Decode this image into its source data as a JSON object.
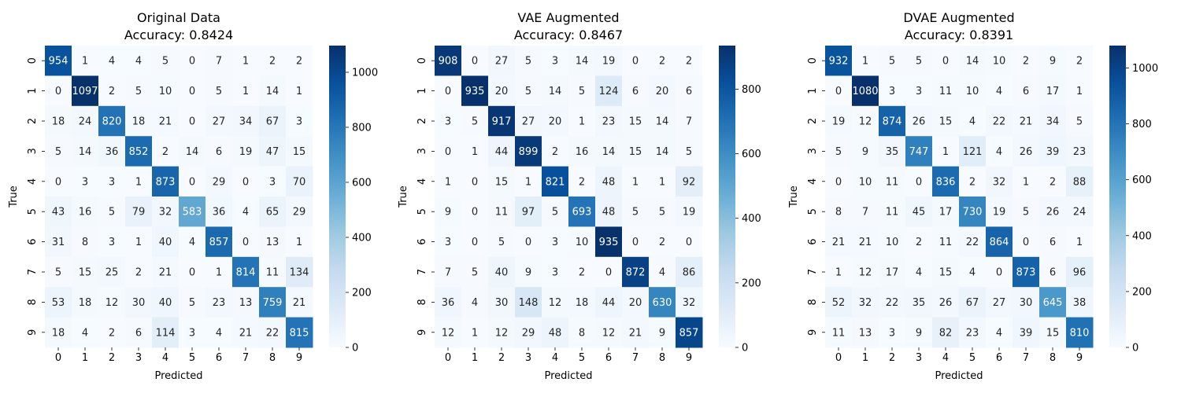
{
  "chart_data": [
    {
      "type": "heatmap",
      "title": "Original Data",
      "subtitle": "Accuracy: 0.8424",
      "xlabel": "Predicted",
      "ylabel": "True",
      "x_ticks": [
        "0",
        "1",
        "2",
        "3",
        "4",
        "5",
        "6",
        "7",
        "8",
        "9"
      ],
      "y_ticks": [
        "0",
        "1",
        "2",
        "3",
        "4",
        "5",
        "6",
        "7",
        "8",
        "9"
      ],
      "colorbar_range": [
        0,
        1097
      ],
      "colorbar_ticks": [
        0,
        200,
        400,
        600,
        800,
        1000
      ],
      "colormap": "Blues",
      "matrix": [
        [
          954,
          1,
          4,
          4,
          5,
          0,
          7,
          1,
          2,
          2
        ],
        [
          0,
          1097,
          2,
          5,
          10,
          0,
          5,
          1,
          14,
          1
        ],
        [
          18,
          24,
          820,
          18,
          21,
          0,
          27,
          34,
          67,
          3
        ],
        [
          5,
          14,
          36,
          852,
          2,
          14,
          6,
          19,
          47,
          15
        ],
        [
          0,
          3,
          3,
          1,
          873,
          0,
          29,
          0,
          3,
          70
        ],
        [
          43,
          16,
          5,
          79,
          32,
          583,
          36,
          4,
          65,
          29
        ],
        [
          31,
          8,
          3,
          1,
          40,
          4,
          857,
          0,
          13,
          1
        ],
        [
          5,
          15,
          25,
          2,
          21,
          0,
          1,
          814,
          11,
          134
        ],
        [
          53,
          18,
          12,
          30,
          40,
          5,
          23,
          13,
          759,
          21
        ],
        [
          18,
          4,
          2,
          6,
          114,
          3,
          4,
          21,
          22,
          815
        ]
      ]
    },
    {
      "type": "heatmap",
      "title": "VAE Augmented",
      "subtitle": "Accuracy: 0.8467",
      "xlabel": "Predicted",
      "ylabel": "True",
      "x_ticks": [
        "0",
        "1",
        "2",
        "3",
        "4",
        "5",
        "6",
        "7",
        "8",
        "9"
      ],
      "y_ticks": [
        "0",
        "1",
        "2",
        "3",
        "4",
        "5",
        "6",
        "7",
        "8",
        "9"
      ],
      "colorbar_range": [
        0,
        935
      ],
      "colorbar_ticks": [
        0,
        200,
        400,
        600,
        800
      ],
      "colormap": "Blues",
      "matrix": [
        [
          908,
          0,
          27,
          5,
          3,
          14,
          19,
          0,
          2,
          2
        ],
        [
          0,
          935,
          20,
          5,
          14,
          5,
          124,
          6,
          20,
          6
        ],
        [
          3,
          5,
          917,
          27,
          20,
          1,
          23,
          15,
          14,
          7
        ],
        [
          0,
          1,
          44,
          899,
          2,
          16,
          14,
          15,
          14,
          5
        ],
        [
          1,
          0,
          15,
          1,
          821,
          2,
          48,
          1,
          1,
          92
        ],
        [
          9,
          0,
          11,
          97,
          5,
          693,
          48,
          5,
          5,
          19
        ],
        [
          3,
          0,
          5,
          0,
          3,
          10,
          935,
          0,
          2,
          0
        ],
        [
          7,
          5,
          40,
          9,
          3,
          2,
          0,
          872,
          4,
          86
        ],
        [
          36,
          4,
          30,
          148,
          12,
          18,
          44,
          20,
          630,
          32
        ],
        [
          12,
          1,
          12,
          29,
          48,
          8,
          12,
          21,
          9,
          857
        ]
      ]
    },
    {
      "type": "heatmap",
      "title": "DVAE Augmented",
      "subtitle": "Accuracy: 0.8391",
      "xlabel": "Predicted",
      "ylabel": "True",
      "x_ticks": [
        "0",
        "1",
        "2",
        "3",
        "4",
        "5",
        "6",
        "7",
        "8",
        "9"
      ],
      "y_ticks": [
        "0",
        "1",
        "2",
        "3",
        "4",
        "5",
        "6",
        "7",
        "8",
        "9"
      ],
      "colorbar_range": [
        0,
        1080
      ],
      "colorbar_ticks": [
        0,
        200,
        400,
        600,
        800,
        1000
      ],
      "colormap": "Blues",
      "matrix": [
        [
          932,
          1,
          5,
          5,
          0,
          14,
          10,
          2,
          9,
          2
        ],
        [
          0,
          1080,
          3,
          3,
          11,
          10,
          4,
          6,
          17,
          1
        ],
        [
          19,
          12,
          874,
          26,
          15,
          4,
          22,
          21,
          34,
          5
        ],
        [
          5,
          9,
          35,
          747,
          1,
          121,
          4,
          26,
          39,
          23
        ],
        [
          0,
          10,
          11,
          0,
          836,
          2,
          32,
          1,
          2,
          88
        ],
        [
          8,
          7,
          11,
          45,
          17,
          730,
          19,
          5,
          26,
          24
        ],
        [
          21,
          21,
          10,
          2,
          11,
          22,
          864,
          0,
          6,
          1
        ],
        [
          1,
          12,
          17,
          4,
          15,
          4,
          0,
          873,
          6,
          96
        ],
        [
          52,
          32,
          22,
          35,
          26,
          67,
          27,
          30,
          645,
          38
        ],
        [
          11,
          13,
          3,
          9,
          82,
          23,
          4,
          39,
          15,
          810
        ]
      ]
    }
  ]
}
